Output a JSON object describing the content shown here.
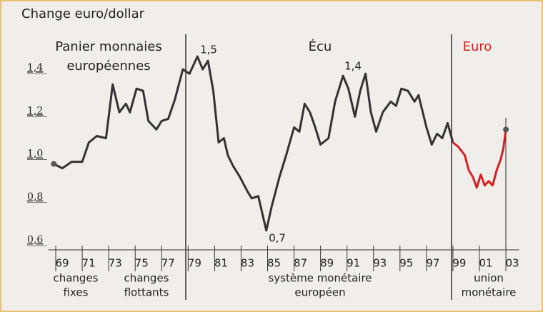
{
  "chart_data": {
    "type": "line",
    "title": "Change euro/dollar",
    "xlim": [
      1968,
      2004
    ],
    "xticks": [
      {
        "value": 1969,
        "label": "69"
      },
      {
        "value": 1971,
        "label": "71"
      },
      {
        "value": 1973,
        "label": "73"
      },
      {
        "value": 1975,
        "label": "75"
      },
      {
        "value": 1977,
        "label": "77"
      },
      {
        "value": 1979,
        "label": "79"
      },
      {
        "value": 1981,
        "label": "81"
      },
      {
        "value": 1983,
        "label": "83"
      },
      {
        "value": 1985,
        "label": "85"
      },
      {
        "value": 1987,
        "label": "87"
      },
      {
        "value": 1989,
        "label": "89"
      },
      {
        "value": 1991,
        "label": "91"
      },
      {
        "value": 1993,
        "label": "93"
      },
      {
        "value": 1995,
        "label": "95"
      },
      {
        "value": 1997,
        "label": "97"
      },
      {
        "value": 1999,
        "label": "99"
      },
      {
        "value": 2001,
        "label": "01"
      },
      {
        "value": 2003,
        "label": "03"
      }
    ],
    "ylim": [
      0.58,
      1.55
    ],
    "yticks": [
      {
        "value": 0.6,
        "label": "0,6"
      },
      {
        "value": 0.8,
        "label": "0,8"
      },
      {
        "value": 1.0,
        "label": "1,0"
      },
      {
        "value": 1.2,
        "label": "1,2"
      },
      {
        "value": 1.4,
        "label": "1,4"
      }
    ],
    "series": [
      {
        "color": "#333333",
        "x": [
          1968.85,
          1969.5,
          1970.2,
          1971,
          1971.5,
          1972.1,
          1972.8,
          1973.3,
          1973.8,
          1974.3,
          1974.6,
          1975.1,
          1975.6,
          1976,
          1976.6,
          1977,
          1977.5,
          1978,
          1978.6,
          1979.1,
          1979.7,
          1980.1,
          1980.5,
          1980.9,
          1981.3,
          1981.7,
          1982,
          1982.4,
          1982.9,
          1983.5,
          1983.8,
          1984.3,
          1984.9,
          1985.3,
          1985.9,
          1986.4,
          1987,
          1987.4,
          1987.8,
          1988.2,
          1988.6,
          1989,
          1989.6,
          1990.1,
          1990.7,
          1991.1,
          1991.6,
          1992,
          1992.4,
          1992.8,
          1993.2,
          1993.7,
          1994.3,
          1994.7,
          1995.1,
          1995.6,
          1996.1,
          1996.4,
          1997,
          1997.4,
          1997.8,
          1998.2,
          1998.6,
          1999
        ],
        "values": [
          0.98,
          0.96,
          0.99,
          0.99,
          1.08,
          1.11,
          1.1,
          1.35,
          1.22,
          1.26,
          1.22,
          1.33,
          1.32,
          1.18,
          1.14,
          1.18,
          1.19,
          1.28,
          1.42,
          1.4,
          1.48,
          1.42,
          1.46,
          1.32,
          1.08,
          1.1,
          1.02,
          0.97,
          0.92,
          0.85,
          0.82,
          0.83,
          0.67,
          0.78,
          0.92,
          1.02,
          1.15,
          1.13,
          1.26,
          1.22,
          1.15,
          1.07,
          1.1,
          1.27,
          1.39,
          1.33,
          1.2,
          1.32,
          1.4,
          1.22,
          1.13,
          1.22,
          1.27,
          1.25,
          1.33,
          1.32,
          1.27,
          1.3,
          1.15,
          1.07,
          1.12,
          1.1,
          1.17,
          1.08
        ]
      },
      {
        "color": "#d42020",
        "x": [
          1999,
          1999.4,
          1999.9,
          2000.2,
          2000.5,
          2000.8,
          2001.1,
          2001.4,
          2001.7,
          2002,
          2002.3,
          2002.6,
          2002.8,
          2003
        ],
        "values": [
          1.08,
          1.06,
          1.02,
          0.95,
          0.92,
          0.87,
          0.93,
          0.88,
          0.9,
          0.88,
          0.95,
          1.0,
          1.05,
          1.14
        ]
      }
    ],
    "annotations": {
      "periods": [
        "Panier monnaies",
        "européennes"
      ],
      "ecu": "Écu",
      "euro": "Euro",
      "high_1979": "1,5",
      "high_1991": "1,4",
      "low_1985": "0,7",
      "changes_fixes": [
        "changes",
        "fixes"
      ],
      "changes_flottants": [
        "changes",
        "flottants"
      ],
      "sme": [
        "système monétaire",
        "européen"
      ],
      "union": [
        "union",
        "monétaire"
      ]
    }
  }
}
